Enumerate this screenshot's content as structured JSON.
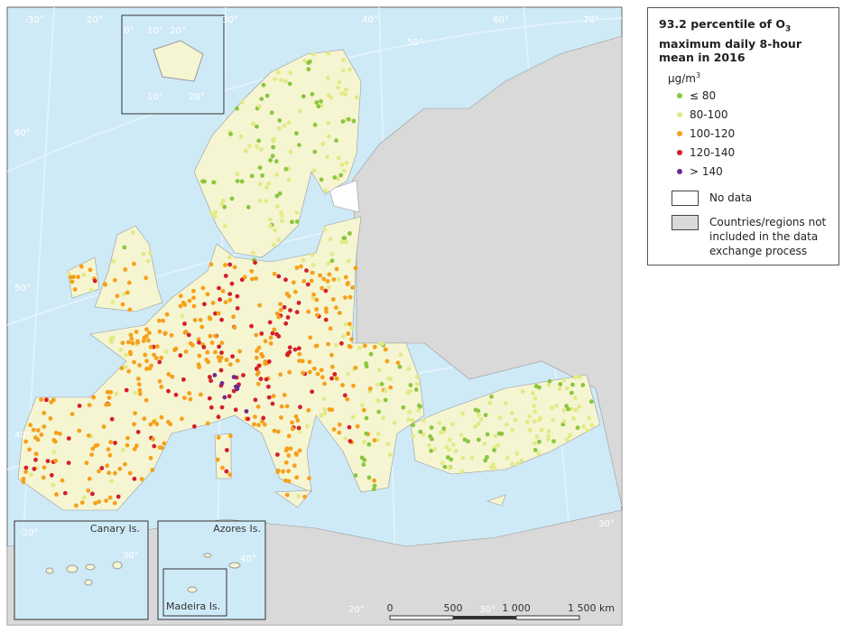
{
  "map": {
    "legend": {
      "title_lead": "93.2 percentile of O",
      "title_subscript": "3",
      "title_tail": "maximum daily 8-hour mean in 2016",
      "unit_base": "μg/m",
      "unit_superscript": "3",
      "classes": [
        {
          "label": "≤ 80",
          "color": "#8cc63f"
        },
        {
          "label": "80-100",
          "color": "#e2ea86"
        },
        {
          "label": "100-120",
          "color": "#f6a01a"
        },
        {
          "label": "120-140",
          "color": "#d51f2b"
        },
        {
          "label": "> 140",
          "color": "#6b2c8f"
        }
      ],
      "areas": [
        {
          "label": "No data",
          "color": "#ffffff"
        },
        {
          "label": "Countries/regions not included in the data exchange process",
          "color": "#d9d9d9"
        }
      ]
    },
    "insets": [
      "Canary Is.",
      "Azores Is.",
      "Madeira Is."
    ],
    "scale_labels": [
      "0",
      "500",
      "1 000",
      "1 500 km"
    ],
    "graticule_labels": [
      "-30°",
      "20°",
      "30°",
      "40°",
      "50°",
      "60°",
      "70°",
      "60°",
      "50°",
      "40°",
      "30°",
      "20°",
      "30°",
      "0°",
      "10°",
      "20°",
      "10°",
      "20°",
      "-20°",
      "30°",
      "40°"
    ]
  }
}
